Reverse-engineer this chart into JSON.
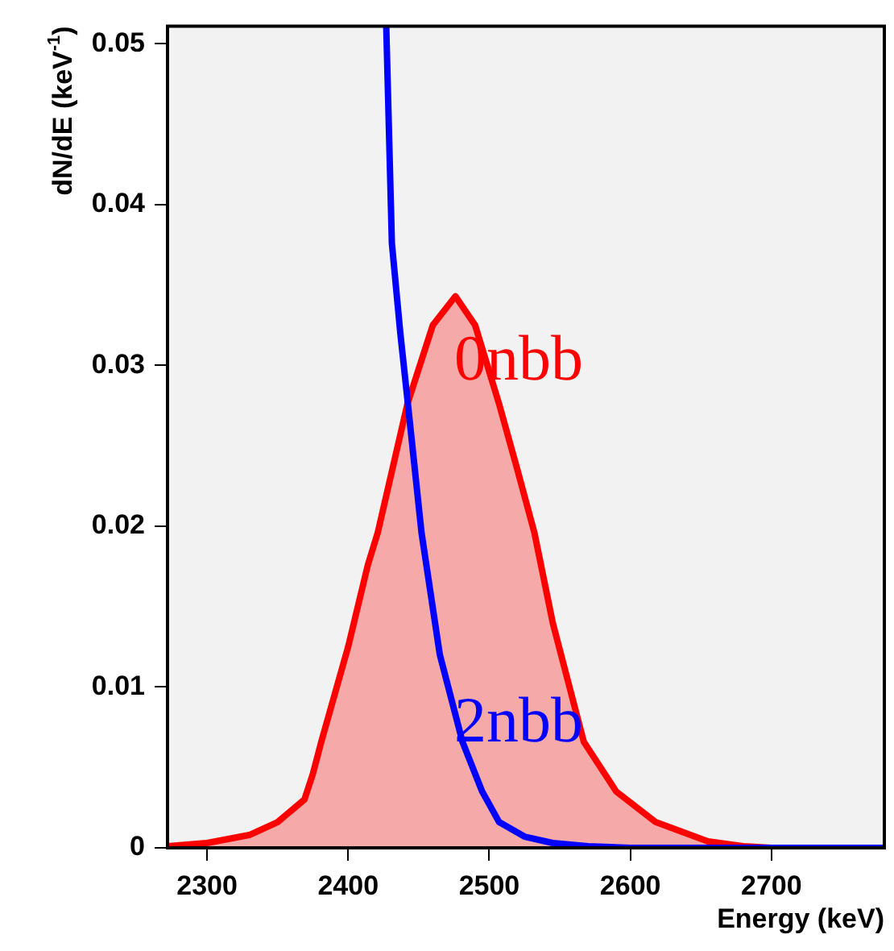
{
  "chart_data": {
    "type": "line",
    "xlabel": "Energy (keV)",
    "ylabel": "dN/dE (keV$^{-1}$)",
    "xlim": [
      2272,
      2780
    ],
    "xticks": [
      2300,
      2400,
      2500,
      2600,
      2700
    ],
    "ylim": [
      0,
      0.0511
    ],
    "yticks": [
      0,
      0.01,
      0.02,
      0.03,
      0.04,
      0.05
    ],
    "grid": false,
    "legend": false,
    "marker": "none",
    "line_style": "solid",
    "series": [
      {
        "type": "area",
        "name": "0nbb",
        "color": "#ff0000",
        "x": [
          2272,
          2300,
          2330,
          2350,
          2369,
          2375,
          2381,
          2400,
          2414,
          2421,
          2442,
          2460,
          2476,
          2490,
          2507,
          2520,
          2532,
          2545,
          2567,
          2590,
          2618,
          2655,
          2680,
          2700
        ],
        "values": [
          0.0001,
          0.0003,
          0.0008,
          0.0016,
          0.003,
          0.0046,
          0.0066,
          0.0125,
          0.0176,
          0.0196,
          0.0276,
          0.0325,
          0.0343,
          0.0325,
          0.0276,
          0.0235,
          0.0196,
          0.014,
          0.0066,
          0.0035,
          0.0016,
          0.0004,
          0.0001,
          0
        ]
      },
      {
        "type": "line",
        "name": "2nbb",
        "color": "#0000ff",
        "x": [
          2427,
          2431,
          2437,
          2442,
          2452,
          2465,
          2481,
          2495,
          2507,
          2525,
          2545,
          2570,
          2600,
          2700,
          2780
        ],
        "values": [
          0.0511,
          0.0376,
          0.032,
          0.0279,
          0.0196,
          0.012,
          0.0066,
          0.0035,
          0.0016,
          0.0007,
          0.0003,
          0.0001,
          0,
          0,
          0
        ]
      }
    ]
  }
}
